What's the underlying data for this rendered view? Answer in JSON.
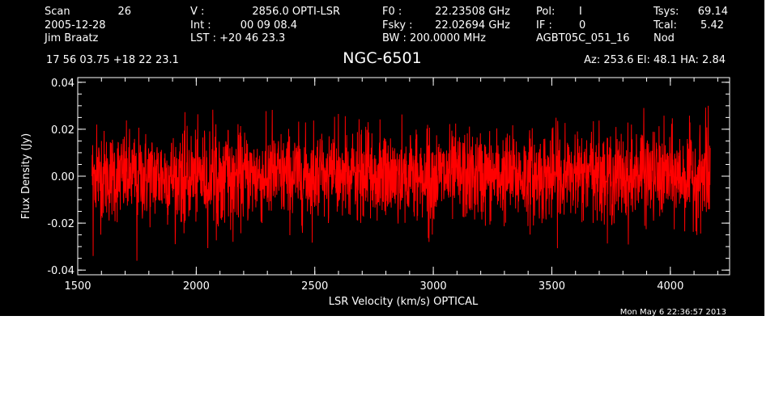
{
  "header": {
    "row1": [
      {
        "key": "scan_label",
        "text": "Scan"
      },
      {
        "key": "scan_value",
        "text": "26"
      },
      {
        "key": "v_label",
        "text": "V   :"
      },
      {
        "key": "v_value",
        "text": "2856.0 OPTI-LSR"
      },
      {
        "key": "f0_label",
        "text": "F0    :"
      },
      {
        "key": "f0_value",
        "text": "22.23508 GHz"
      },
      {
        "key": "pol_label",
        "text": "Pol:"
      },
      {
        "key": "pol_value",
        "text": "I"
      },
      {
        "key": "tsys_label",
        "text": "Tsys:"
      },
      {
        "key": "tsys_value",
        "text": "69.14"
      }
    ],
    "row2": [
      {
        "key": "date",
        "text": "2005-12-28"
      },
      {
        "key": "int_label",
        "text": "Int   :"
      },
      {
        "key": "int_value",
        "text": "00 09 08.4"
      },
      {
        "key": "fsky_label",
        "text": "Fsky :"
      },
      {
        "key": "fsky_value",
        "text": "22.02694 GHz"
      },
      {
        "key": "if_label",
        "text": "IF :"
      },
      {
        "key": "if_value",
        "text": "0"
      },
      {
        "key": "tcal_label",
        "text": "Tcal:"
      },
      {
        "key": "tcal_value",
        "text": "5.42"
      }
    ],
    "row3": [
      {
        "key": "observer",
        "text": "Jim Braatz"
      },
      {
        "key": "lst",
        "text": "LST : +20 46 23.3"
      },
      {
        "key": "bw",
        "text": "BW   : 200.0000 MHz"
      },
      {
        "key": "project",
        "text": "AGBT05C_051_16"
      },
      {
        "key": "mode",
        "text": "Nod"
      }
    ],
    "coords": "17 56 03.75  +18 22 23.1",
    "source": "NGC-6501",
    "az_el_ha": "Az: 253.6   El:  48.1   HA:  2.84"
  },
  "timestamp": "Mon May  6 22:36:57 2013",
  "colors": {
    "background": "#000000",
    "foreground": "#ffffff",
    "trace": "#ff0000"
  },
  "chart_data": {
    "type": "line",
    "title": "NGC-6501",
    "xlabel": "LSR Velocity (km/s) OPTICAL",
    "ylabel": "Flux Density (Jy)",
    "xlim": [
      1500,
      4250
    ],
    "ylim": [
      -0.042,
      0.042
    ],
    "x_ticks": [
      1500,
      2000,
      2500,
      3000,
      3500,
      4000
    ],
    "x_tick_labels": [
      "1500",
      "2000",
      "2500",
      "3000",
      "3500",
      "4000"
    ],
    "y_ticks": [
      -0.04,
      -0.02,
      0.0,
      0.02,
      0.04
    ],
    "y_tick_labels": [
      "-0.04",
      "-0.02",
      "0.00",
      "0.02",
      "0.04"
    ],
    "x_minor_step": 100,
    "y_minor_step": 0.005,
    "grid": false,
    "series": [
      {
        "color": "#ff0000",
        "x_start": 1560,
        "x_end": 4168,
        "noise_rms": 0.0095,
        "noise_peak": 0.027,
        "samples": [
          {
            "x": 1560,
            "y": 0.0
          },
          {
            "x": 1565,
            "y": -0.034
          },
          {
            "x": 1570,
            "y": 0.005
          },
          {
            "x": 1580,
            "y": 0.022
          },
          {
            "x": 1600,
            "y": 0.015
          },
          {
            "x": 1750,
            "y": -0.036
          },
          {
            "x": 2000,
            "y": 0.0
          },
          {
            "x": 2500,
            "y": 0.0
          },
          {
            "x": 3000,
            "y": 0.0
          },
          {
            "x": 3500,
            "y": 0.0
          },
          {
            "x": 4000,
            "y": 0.0
          },
          {
            "x": 4160,
            "y": 0.03
          },
          {
            "x": 4168,
            "y": 0.012
          }
        ]
      }
    ]
  }
}
